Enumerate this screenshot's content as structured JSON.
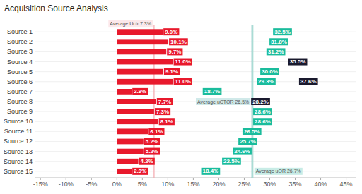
{
  "chart_data": {
    "type": "bar",
    "orientation": "horizontal",
    "title": "Acquisition Source Analysis",
    "categories": [
      "Source 1",
      "Source 2",
      "Source 3",
      "Source 4",
      "Source 5",
      "Source 6",
      "Source 7",
      "Source 8",
      "Source 9",
      "Source 10",
      "Source 11",
      "Source 12",
      "Source 13",
      "Source 14",
      "Source 15"
    ],
    "series": [
      {
        "type": "bar",
        "color": "#e8192c",
        "values": [
          9.0,
          10.1,
          9.7,
          11.0,
          9.1,
          11.0,
          2.9,
          7.7,
          7.3,
          8.1,
          6.1,
          5.2,
          5.2,
          4.2,
          2.9
        ],
        "value_labels": [
          "9.0%",
          "10.1%",
          "9.7%",
          "11.0%",
          "9.1%",
          "11.0%",
          "2.9%",
          "7.7%",
          "7.3%",
          "8.1%",
          "6.1%",
          "5.2%",
          "5.2%",
          "4.2%",
          "2.9%"
        ]
      },
      {
        "type": "scatter",
        "marker": "square",
        "color": "#1abc9c",
        "values": [
          null,
          null,
          null,
          null,
          null,
          null,
          18.7,
          null,
          null,
          null,
          null,
          25.7,
          24.6,
          22.5,
          18.4
        ],
        "value_labels": [
          null,
          null,
          null,
          null,
          null,
          null,
          "18.7%",
          null,
          null,
          null,
          null,
          "25.7%",
          "24.6%",
          "22.5%",
          "18.4%"
        ]
      },
      {
        "type": "scatter",
        "marker": "square",
        "colors": [
          "#1abc9c",
          "#1abc9c",
          "#1abc9c",
          "#1a1a2e",
          "#1abc9c",
          "#1abc9c",
          null,
          "#1a1a2e",
          "#1abc9c",
          "#1abc9c",
          "#1abc9c",
          null,
          null,
          null,
          null
        ],
        "values": [
          32.5,
          31.8,
          31.2,
          35.5,
          30.0,
          29.3,
          null,
          28.2,
          28.6,
          28.6,
          26.5,
          null,
          null,
          null,
          null
        ],
        "value_labels": [
          "32.5%",
          "31.8%",
          "31.2%",
          "35.5%",
          "30.0%",
          "29.3%",
          null,
          "28.2%",
          "28.6%",
          "28.6%",
          "26.5%",
          null,
          null,
          null,
          null
        ]
      },
      {
        "type": "scatter",
        "marker": "square",
        "color": "#1a1a2e",
        "values": [
          null,
          null,
          null,
          null,
          null,
          37.6,
          null,
          null,
          null,
          null,
          null,
          null,
          null,
          null,
          null
        ],
        "value_labels": [
          null,
          null,
          null,
          null,
          null,
          "37.6%",
          null,
          null,
          null,
          null,
          null,
          null,
          null,
          null,
          null
        ]
      }
    ],
    "xlim": [
      -16,
      47
    ],
    "xticks": [
      {
        "value": -15,
        "label": "-15%"
      },
      {
        "value": -10,
        "label": "-10%"
      },
      {
        "value": -5,
        "label": "-5%"
      },
      {
        "value": 0,
        "label": "0%"
      },
      {
        "value": 5,
        "label": "5%"
      },
      {
        "value": 10,
        "label": "10%"
      },
      {
        "value": 15,
        "label": "15%"
      },
      {
        "value": 20,
        "label": "20%"
      },
      {
        "value": 25,
        "label": "25%"
      },
      {
        "value": 30,
        "label": "30%"
      },
      {
        "value": 35,
        "label": "35%"
      },
      {
        "value": 40,
        "label": "40%"
      },
      {
        "value": 45,
        "label": "45%"
      }
    ],
    "grid": true,
    "data_labels": true,
    "annotations": [
      {
        "text": "Average Uctr 7.3%",
        "value": 7.3,
        "color": "#f4a7ad",
        "background": "#fce8ea"
      },
      {
        "text": "Average uCTOR 26.5%",
        "value": 26.5,
        "color": "#7bbfbf",
        "background": "#d0e9e9"
      },
      {
        "text": "Average uOR 26.7%",
        "value": 26.7,
        "color": "#a0d8cf",
        "background": "#c8ece6"
      }
    ]
  }
}
